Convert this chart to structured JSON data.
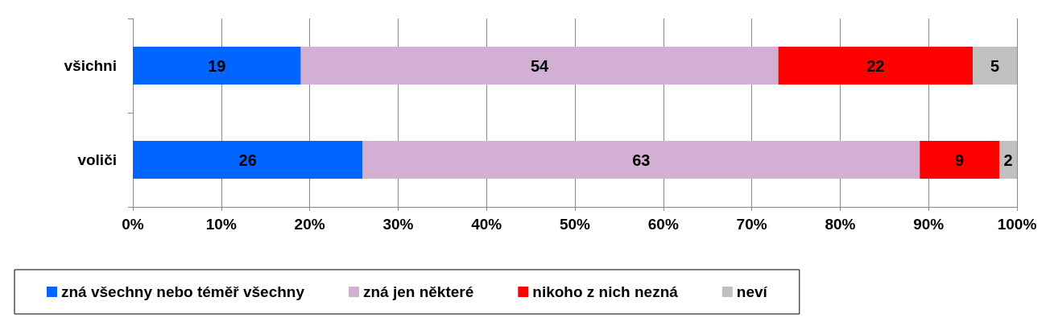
{
  "chart_data": {
    "type": "bar",
    "orientation": "horizontal",
    "stacked": true,
    "categories": [
      "všichni",
      "voliči"
    ],
    "series": [
      {
        "name": "zná všechny nebo téměř všechny",
        "color": "#0066ff",
        "values": [
          19,
          26
        ]
      },
      {
        "name": "zná jen některé",
        "color": "#d3afd3",
        "values": [
          54,
          63
        ]
      },
      {
        "name": "nikoho z nich nezná",
        "color": "#ff0000",
        "values": [
          22,
          9
        ]
      },
      {
        "name": "neví",
        "color": "#c0c0c0",
        "values": [
          5,
          2
        ]
      }
    ],
    "xlim": [
      0,
      100
    ],
    "xticks": [
      {
        "value": 0,
        "label": "0%"
      },
      {
        "value": 10,
        "label": "10%"
      },
      {
        "value": 20,
        "label": "20%"
      },
      {
        "value": 30,
        "label": "30%"
      },
      {
        "value": 40,
        "label": "40%"
      },
      {
        "value": 50,
        "label": "50%"
      },
      {
        "value": 60,
        "label": "60%"
      },
      {
        "value": 70,
        "label": "70%"
      },
      {
        "value": 80,
        "label": "80%"
      },
      {
        "value": 90,
        "label": "90%"
      },
      {
        "value": 100,
        "label": "100%"
      }
    ],
    "grid": "x",
    "legend": "bottom",
    "data_labels": true
  }
}
